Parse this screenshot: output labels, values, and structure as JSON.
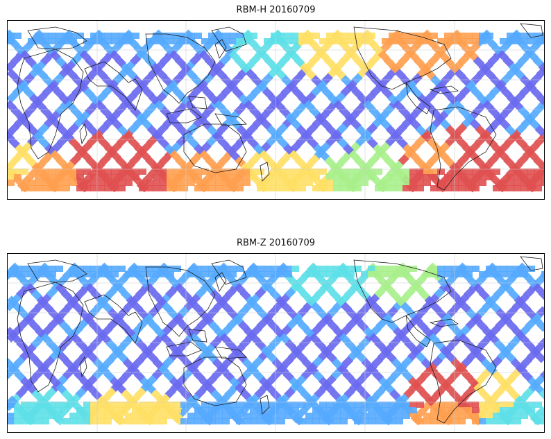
{
  "panels": [
    {
      "title": "RBM-H 20160709"
    },
    {
      "title": "RBM-Z 20160709"
    }
  ],
  "colors": {
    "background": "#ffffff",
    "frame": "#000000",
    "grid": "#cccccc",
    "coastline": "#1a1a1a",
    "swath_low": "#6a6af0",
    "swath_mid": "#55aaff",
    "swath_cyan": "#5ee0e8",
    "swath_green": "#a8f08c",
    "swath_yellow": "#ffe066",
    "swath_orange": "#ffa050",
    "swath_high": "#e05050"
  }
}
